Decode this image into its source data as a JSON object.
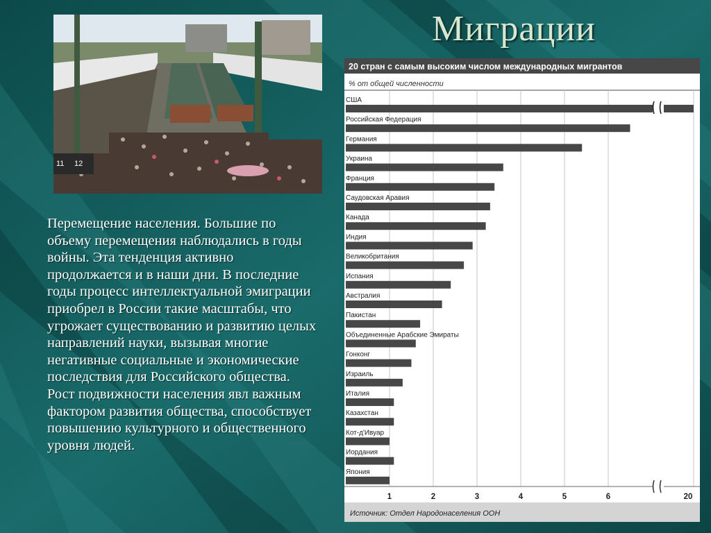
{
  "slide": {
    "title": "Миграции",
    "paragraph": " Перемещение населения. Большие по объему перемещения наблюдались в годы войны. Эта тенденция активно продолжается и в наши дни. В последние годы процесс интеллектуальной эмиграции приобрел в России такие масштабы, что угрожает существованию и развитию целых направлений науки, вызывая многие негативные социальные и экономические последствия для Российского общества. Рост подвижности населения явл важным фактором развития общества, способствует повышению культурного и общественного уровня людей."
  },
  "photo": {
    "train_numbers": [
      "11",
      "12"
    ]
  },
  "chart_data": {
    "type": "bar",
    "orientation": "horizontal",
    "title": "20 стран с самым высоким числом международных мигрантов",
    "subtitle": "% от общей численности",
    "source": "Источник: Отдел Народонаселения ООН",
    "categories": [
      "США",
      "Российская Федерация",
      "Германия",
      "Украина",
      "Франция",
      "Саудовская Аравия",
      "Канада",
      "Индия",
      "Великобритания",
      "Испания",
      "Австралия",
      "Пакистан",
      "Объединенные Арабские Эмираты",
      "Гонконг",
      "Израиль",
      "Италия",
      "Казахстан",
      "Кот-д'Ивуар",
      "Иордания",
      "Япония"
    ],
    "values": [
      20,
      6.5,
      5.4,
      3.6,
      3.4,
      3.3,
      3.2,
      2.9,
      2.7,
      2.4,
      2.2,
      1.7,
      1.6,
      1.5,
      1.3,
      1.1,
      1.1,
      1.0,
      1.1,
      1.0
    ],
    "x_ticks": [
      "1",
      "2",
      "3",
      "4",
      "5",
      "6",
      "20"
    ],
    "xlim": [
      0,
      7
    ],
    "axis_break": true,
    "grid": true,
    "colors": {
      "bar": "#474747",
      "grid": "#c4c4c4",
      "footer": "#d4d4d4"
    }
  }
}
